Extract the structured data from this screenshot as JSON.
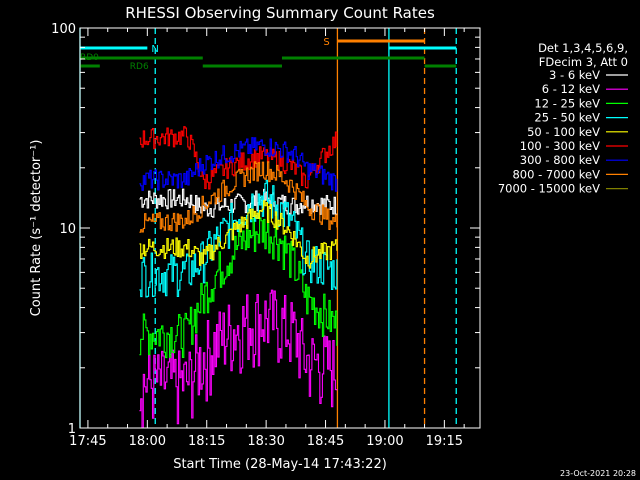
{
  "chart_data": {
    "type": "line",
    "title": "RHESSI Observing Summary Count Rates",
    "xlabel": "Start Time (28-May-14 17:43:22)",
    "ylabel": "Count Rate (s⁻¹ detector⁻¹)",
    "yscale": "log",
    "ylim": [
      1,
      100
    ],
    "xlim": [
      "17:43",
      "19:24"
    ],
    "x_tick_labels": [
      "17:45",
      "18:00",
      "18:15",
      "18:30",
      "18:45",
      "19:00",
      "19:15"
    ],
    "y_tick_labels": [
      "1",
      "10",
      "100"
    ],
    "legend_header": [
      "Det 1,3,4,5,6,9,",
      "FDecim 3, Att 0"
    ],
    "legend_position": "right",
    "footer_date": "23-Oct-2021 20:28",
    "series": [
      {
        "name": "3 - 6 keV",
        "color": "#ffffff",
        "x": [
          "17:58",
          "18:10",
          "18:14",
          "18:20",
          "18:25",
          "18:29",
          "18:33",
          "18:37",
          "18:40",
          "18:48"
        ],
        "y": [
          14,
          14,
          12.5,
          13,
          13.5,
          14,
          13.5,
          13,
          13.5,
          13
        ]
      },
      {
        "name": "6 - 12 keV",
        "color": "#ff00ff",
        "x": [
          "17:58",
          "18:10",
          "18:14",
          "18:20",
          "18:25",
          "18:29",
          "18:33",
          "18:37",
          "18:40",
          "18:48"
        ],
        "y": [
          1.7,
          1.7,
          2.3,
          3.0,
          3.4,
          3.6,
          3.4,
          3.0,
          2.2,
          2.0
        ]
      },
      {
        "name": "12 - 25 keV",
        "color": "#00ff00",
        "x": [
          "17:58",
          "18:10",
          "18:14",
          "18:20",
          "18:25",
          "18:29",
          "18:33",
          "18:37",
          "18:40",
          "18:48"
        ],
        "y": [
          3.0,
          3.0,
          4.5,
          7.0,
          9.0,
          10.0,
          9.0,
          6.5,
          4.5,
          3.2
        ]
      },
      {
        "name": "25 - 50 keV",
        "color": "#00ffff",
        "x": [
          "17:58",
          "18:10",
          "18:14",
          "18:20",
          "18:25",
          "18:29",
          "18:33",
          "18:37",
          "18:40",
          "18:48"
        ],
        "y": [
          6.0,
          6.0,
          7.0,
          10.0,
          13.0,
          14.5,
          13.0,
          10.0,
          7.0,
          6.0
        ]
      },
      {
        "name": "50 - 100 keV",
        "color": "#ffff00",
        "x": [
          "17:58",
          "18:10",
          "18:14",
          "18:20",
          "18:25",
          "18:29",
          "18:33",
          "18:37",
          "18:40",
          "18:48"
        ],
        "y": [
          8.0,
          8.0,
          7.0,
          9.0,
          11.0,
          12.5,
          11.0,
          9.0,
          7.0,
          8.0
        ]
      },
      {
        "name": "100 - 300 keV",
        "color": "#ff0000",
        "x": [
          "17:58",
          "18:10",
          "18:14",
          "18:20",
          "18:25",
          "18:29",
          "18:33",
          "18:37",
          "18:40",
          "18:48"
        ],
        "y": [
          28,
          29,
          17,
          20,
          22,
          23,
          22,
          20,
          17,
          28
        ]
      },
      {
        "name": "300 - 800 keV",
        "color": "#0000ff",
        "x": [
          "17:58",
          "18:10",
          "18:14",
          "18:20",
          "18:25",
          "18:29",
          "18:33",
          "18:37",
          "18:40",
          "18:48"
        ],
        "y": [
          17.5,
          17.5,
          21,
          23.5,
          25,
          26,
          25,
          23.5,
          20,
          17
        ]
      },
      {
        "name": "800 - 7000 keV",
        "color": "#ff8000",
        "x": [
          "17:58",
          "18:10",
          "18:14",
          "18:20",
          "18:25",
          "18:29",
          "18:33",
          "18:37",
          "18:40",
          "18:48"
        ],
        "y": [
          10.5,
          11,
          13,
          16,
          18.5,
          20,
          18.5,
          16,
          13,
          10.5
        ]
      },
      {
        "name": "7000 - 15000 keV",
        "color": "#808000",
        "x": [],
        "y": []
      }
    ],
    "markers": {
      "attenuator_state": [
        {
          "label": "N",
          "color": "#00ffff",
          "x_start": "17:43",
          "x_end": "18:00"
        },
        {
          "label": "S",
          "color": "#ff8000",
          "x_start": "18:48",
          "x_end": "19:10"
        },
        {
          "label": "",
          "color": "#00ffff",
          "x_start": "19:01",
          "x_end": "19:18"
        }
      ],
      "rate_decimation": [
        {
          "label": "RD0",
          "color": "#008000",
          "x_start": "17:43",
          "x_end": "18:14"
        },
        {
          "label": "RD6",
          "color": "#008000",
          "x_start": "17:43",
          "x_end": "17:48"
        },
        {
          "label": "",
          "color": "#008000",
          "x_start": "18:14",
          "x_end": "18:34"
        },
        {
          "label": "",
          "color": "#008000",
          "x_start": "18:34",
          "x_end": "19:10"
        },
        {
          "label": "",
          "color": "#008000",
          "x_start": "19:10",
          "x_end": "19:18"
        }
      ],
      "vertical_lines": [
        {
          "x": "17:43",
          "color": "#00ffff",
          "style": "solid"
        },
        {
          "x": "18:02",
          "color": "#00ffff",
          "style": "dashed"
        },
        {
          "x": "18:48",
          "color": "#ff8000",
          "style": "solid"
        },
        {
          "x": "19:01",
          "color": "#00ffff",
          "style": "solid"
        },
        {
          "x": "19:10",
          "color": "#ff8000",
          "style": "dashed"
        },
        {
          "x": "19:18",
          "color": "#00ffff",
          "style": "dashed"
        }
      ]
    }
  }
}
